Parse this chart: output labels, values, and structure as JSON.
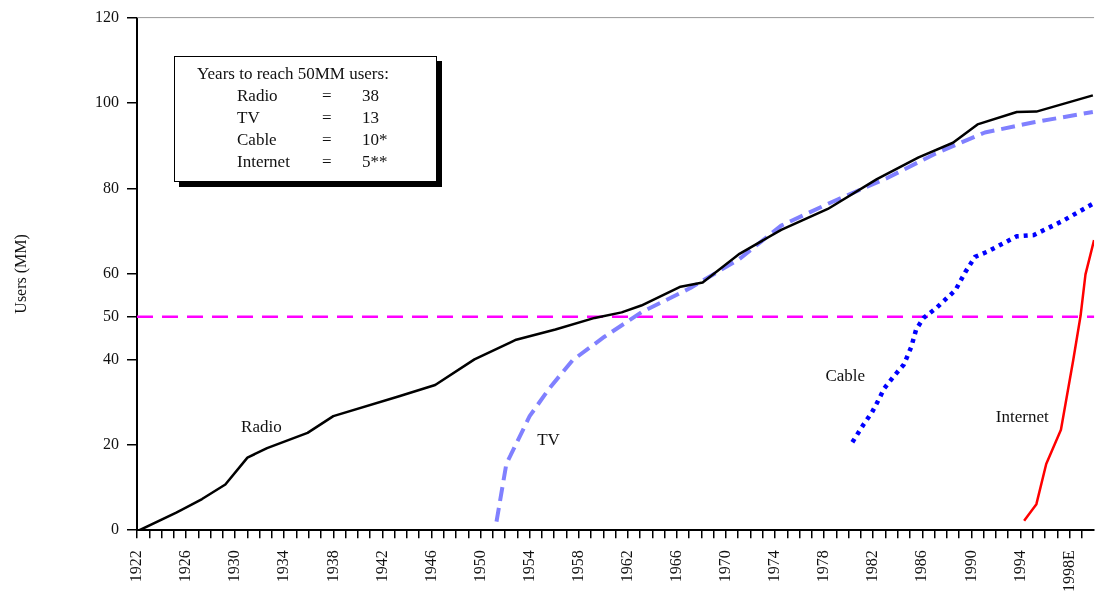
{
  "chart_data": {
    "type": "line",
    "ylabel": "Users (MM)",
    "annotations": [
      "Years to reach 50MM users:",
      "Radio = 38",
      "TV = 13",
      "Cable = 10*",
      "Internet = 5**"
    ],
    "xlim": [
      1922,
      2000
    ],
    "xticks": [
      1922,
      {
        "value": 1923,
        "label": null
      },
      {
        "value": 1924,
        "label": null
      },
      {
        "value": 1925,
        "label": null
      },
      1926,
      {
        "value": 1927,
        "label": null
      },
      {
        "value": 1928,
        "label": null
      },
      {
        "value": 1929,
        "label": null
      },
      1930,
      {
        "value": 1931,
        "label": null
      },
      {
        "value": 1932,
        "label": null
      },
      {
        "value": 1933,
        "label": null
      },
      1934,
      {
        "value": 1935,
        "label": null
      },
      {
        "value": 1936,
        "label": null
      },
      {
        "value": 1937,
        "label": null
      },
      1938,
      {
        "value": 1939,
        "label": null
      },
      {
        "value": 1940,
        "label": null
      },
      {
        "value": 1941,
        "label": null
      },
      1942,
      {
        "value": 1943,
        "label": null
      },
      {
        "value": 1944,
        "label": null
      },
      {
        "value": 1945,
        "label": null
      },
      1946,
      {
        "value": 1947,
        "label": null
      },
      {
        "value": 1948,
        "label": null
      },
      {
        "value": 1949,
        "label": null
      },
      1950,
      {
        "value": 1951,
        "label": null
      },
      {
        "value": 1952,
        "label": null
      },
      {
        "value": 1953,
        "label": null
      },
      1954,
      {
        "value": 1955,
        "label": null
      },
      {
        "value": 1956,
        "label": null
      },
      {
        "value": 1957,
        "label": null
      },
      1958,
      {
        "value": 1959,
        "label": null
      },
      {
        "value": 1960,
        "label": null
      },
      {
        "value": 1961,
        "label": null
      },
      1962,
      {
        "value": 1963,
        "label": null
      },
      {
        "value": 1964,
        "label": null
      },
      {
        "value": 1965,
        "label": null
      },
      1966,
      {
        "value": 1967,
        "label": null
      },
      {
        "value": 1968,
        "label": null
      },
      {
        "value": 1969,
        "label": null
      },
      1970,
      {
        "value": 1971,
        "label": null
      },
      {
        "value": 1972,
        "label": null
      },
      {
        "value": 1973,
        "label": null
      },
      1974,
      {
        "value": 1975,
        "label": null
      },
      {
        "value": 1976,
        "label": null
      },
      {
        "value": 1977,
        "label": null
      },
      1978,
      {
        "value": 1979,
        "label": null
      },
      {
        "value": 1980,
        "label": null
      },
      {
        "value": 1981,
        "label": null
      },
      1982,
      {
        "value": 1983,
        "label": null
      },
      {
        "value": 1984,
        "label": null
      },
      {
        "value": 1985,
        "label": null
      },
      1986,
      {
        "value": 1987,
        "label": null
      },
      {
        "value": 1988,
        "label": null
      },
      {
        "value": 1989,
        "label": null
      },
      1990,
      {
        "value": 1991,
        "label": null
      },
      {
        "value": 1992,
        "label": null
      },
      {
        "value": 1993,
        "label": null
      },
      1994,
      {
        "value": 1995,
        "label": null
      },
      {
        "value": 1996,
        "label": null
      },
      {
        "value": 1997,
        "label": null
      },
      {
        "value": 1998,
        "label": "1998E"
      },
      {
        "value": 1999,
        "label": null
      }
    ],
    "ylim": [
      0,
      120
    ],
    "yticks": [
      0,
      20,
      40,
      50,
      60,
      80,
      100,
      120
    ],
    "series": [
      {
        "name": "Radio",
        "color": "#000000",
        "line_style": "solid",
        "x": [
          1922.2,
          1925.2,
          1927.3,
          1929.2,
          1931.0,
          1932.6,
          1935.9,
          1938.0,
          1943.3,
          1946.3,
          1949.5,
          1952.9,
          1956.1,
          1959.3,
          1961.5,
          1963.1,
          1966.3,
          1968.1,
          1971.1,
          1974.5,
          1978.3,
          1982.3,
          1985.7,
          1988.5,
          1990.5,
          1993.7,
          1995.3,
          1999.9
        ],
        "values": [
          0,
          4.1,
          7.3,
          10.7,
          17,
          19.2,
          22.8,
          26.7,
          31.3,
          34,
          40,
          44.6,
          47,
          49.7,
          51,
          52.6,
          57,
          58,
          64.7,
          70.3,
          75.2,
          82.2,
          87.3,
          90.7,
          95,
          97.9,
          98,
          101.8
        ]
      },
      {
        "name": "TV",
        "color": "#8080ff",
        "line_style": "dashed",
        "x": [
          1951.3,
          1952.1,
          1954.0,
          1955.6,
          1957.5,
          1960.1,
          1963.1,
          1967.1,
          1971.1,
          1974.5,
          1978.3,
          1983.1,
          1987.1,
          1991.1,
          1995.1,
          1999.9
        ],
        "values": [
          2,
          15.5,
          26.7,
          33.2,
          39.8,
          45.3,
          51,
          56.7,
          63.5,
          71.3,
          76.4,
          82.4,
          88.2,
          93.1,
          95.5,
          97.9
        ]
      },
      {
        "name": "Cable",
        "color": "#0000ff",
        "line_style": "dotted",
        "x": [
          1980.3,
          1981.2,
          1981.9,
          1982.4,
          1982.9,
          1983.7,
          1984.5,
          1985.1,
          1985.5,
          1986.1,
          1987.1,
          1988.7,
          1989.5,
          1990.3,
          1991.3,
          1993.7,
          1995.1,
          1997.5,
          1999.9
        ],
        "values": [
          20.6,
          24.7,
          27.6,
          30.3,
          33.2,
          36.1,
          38.8,
          42.9,
          47,
          49.7,
          51.9,
          56.2,
          60.4,
          64,
          65.2,
          68.8,
          69.1,
          72.5,
          76.4
        ]
      },
      {
        "name": "Internet",
        "color": "#ff0000",
        "line_style": "solid",
        "x": [
          1994.3,
          1995.3,
          1996.1,
          1997.3,
          1998.3,
          1998.9,
          1999.3,
          2000
        ],
        "values": [
          2.2,
          6.1,
          15.5,
          23.5,
          39.8,
          50.2,
          59.9,
          67.9
        ]
      }
    ],
    "ref_lines": [
      {
        "axis": "y",
        "value": 50,
        "color": "#ff00ff",
        "line_style": "dashed"
      }
    ],
    "grid": false,
    "legend": false
  }
}
